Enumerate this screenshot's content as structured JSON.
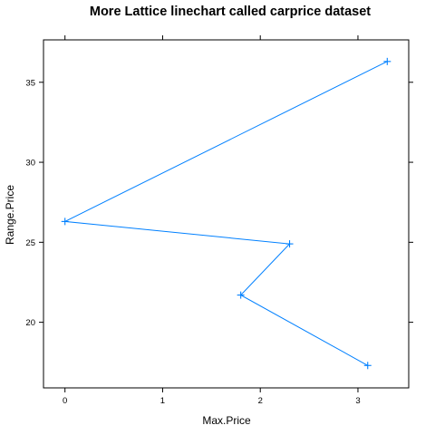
{
  "chart_data": {
    "type": "line",
    "title": "More Lattice linechart called carprice dataset",
    "xlabel": "Max.Price",
    "ylabel": "Range.Price",
    "xlim": [
      -0.22,
      3.52
    ],
    "ylim": [
      15.9,
      37.65
    ],
    "x_ticks": [
      0,
      1,
      2,
      3
    ],
    "y_ticks": [
      20,
      25,
      30,
      35
    ],
    "grid": false,
    "marker": "+",
    "color": "#0080ff",
    "series": [
      {
        "x": [
          3.3,
          0.0,
          2.3,
          1.8,
          3.1
        ],
        "y": [
          36.3,
          26.3,
          24.9,
          21.7,
          17.3
        ]
      }
    ]
  }
}
